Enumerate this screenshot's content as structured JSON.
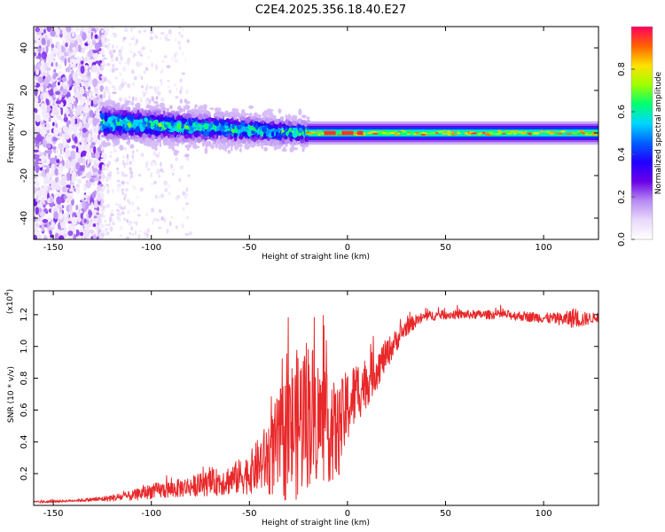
{
  "figure_title": "C2E4.2025.356.18.40.E27",
  "colors": {
    "snr_line": "#e8282a",
    "frame": "#000000",
    "colormap": [
      "#ffffff",
      "#e9d9fb",
      "#b68af2",
      "#6a00e8",
      "#2000ff",
      "#0060ff",
      "#00d8ff",
      "#00ff70",
      "#a0ff00",
      "#ffe000",
      "#ff6000",
      "#ff0060"
    ]
  },
  "chart_data": [
    {
      "type": "heatmap",
      "title": "",
      "xlabel": "Height of straight line (km)",
      "ylabel": "Frequency (Hz)",
      "xlim": [
        -160,
        128
      ],
      "ylim": [
        -50,
        50
      ],
      "x_ticks": [
        "-150",
        "-100",
        "-50",
        "0",
        "50",
        "100"
      ],
      "x_tick_values": [
        -150,
        -100,
        -50,
        0,
        50,
        100
      ],
      "y_ticks": [
        "-40",
        "-20",
        "0",
        "20",
        "40"
      ],
      "y_tick_values": [
        -40,
        -20,
        0,
        20,
        40
      ],
      "colorbar": {
        "label": "Normalized spectral amplitude",
        "range": [
          0.0,
          1.0
        ],
        "ticks": [
          "0.0",
          "0.2",
          "0.4",
          "0.6",
          "0.8"
        ],
        "tick_values": [
          0.0,
          0.2,
          0.4,
          0.6,
          0.8
        ]
      },
      "features": [
        {
          "x_range": [
            -160,
            -125
          ],
          "freq_range": [
            -50,
            50
          ],
          "amplitude": "0.05-0.25 scattered noise"
        },
        {
          "x_range": [
            -125,
            -20
          ],
          "freq_range": [
            -10,
            10
          ],
          "amplitude": "0.2-0.5 broadened band"
        },
        {
          "x_range": [
            -20,
            128
          ],
          "freq_range": [
            -2,
            2
          ],
          "amplitude": "0.45-1.0 narrow band"
        }
      ]
    },
    {
      "type": "line",
      "title": "",
      "xlabel": "Height of straight line (km)",
      "ylabel": "SNR (10 * v/v)",
      "y_multiplier_label": "(x10",
      "y_multiplier_exp": "4",
      "y_multiplier_close": ")",
      "xlim": [
        -160,
        128
      ],
      "ylim": [
        0.0,
        1.35
      ],
      "x_ticks": [
        "-150",
        "-100",
        "-50",
        "0",
        "50",
        "100"
      ],
      "x_tick_values": [
        -150,
        -100,
        -50,
        0,
        50,
        100
      ],
      "y_ticks": [
        "0.2",
        "0.4",
        "0.6",
        "0.8",
        "1.0",
        "1.2"
      ],
      "y_tick_values": [
        0.2,
        0.4,
        0.6,
        0.8,
        1.0,
        1.2
      ],
      "series": [
        {
          "name": "SNR",
          "x": [
            -160,
            -140,
            -125,
            -110,
            -100,
            -90,
            -80,
            -70,
            -60,
            -50,
            -45,
            -40,
            -35,
            -30,
            -25,
            -20,
            -15,
            -10,
            -5,
            0,
            5,
            10,
            15,
            20,
            25,
            30,
            35,
            40,
            50,
            60,
            70,
            80,
            90,
            100,
            110,
            115,
            120,
            125,
            128
          ],
          "values": [
            0.02,
            0.03,
            0.04,
            0.06,
            0.09,
            0.1,
            0.12,
            0.14,
            0.16,
            0.2,
            0.26,
            0.3,
            0.38,
            0.45,
            0.52,
            0.6,
            0.54,
            0.48,
            0.45,
            0.62,
            0.72,
            0.78,
            0.86,
            0.95,
            1.04,
            1.12,
            1.16,
            1.19,
            1.2,
            1.2,
            1.2,
            1.2,
            1.19,
            1.18,
            1.17,
            1.18,
            1.17,
            1.18,
            1.18
          ],
          "spread": [
            0.01,
            0.01,
            0.02,
            0.04,
            0.06,
            0.07,
            0.08,
            0.1,
            0.12,
            0.16,
            0.22,
            0.3,
            0.42,
            0.55,
            0.6,
            0.62,
            0.5,
            0.42,
            0.38,
            0.3,
            0.25,
            0.2,
            0.16,
            0.12,
            0.09,
            0.07,
            0.05,
            0.04,
            0.035,
            0.035,
            0.035,
            0.035,
            0.04,
            0.04,
            0.05,
            0.08,
            0.06,
            0.04,
            0.03
          ]
        }
      ]
    }
  ]
}
